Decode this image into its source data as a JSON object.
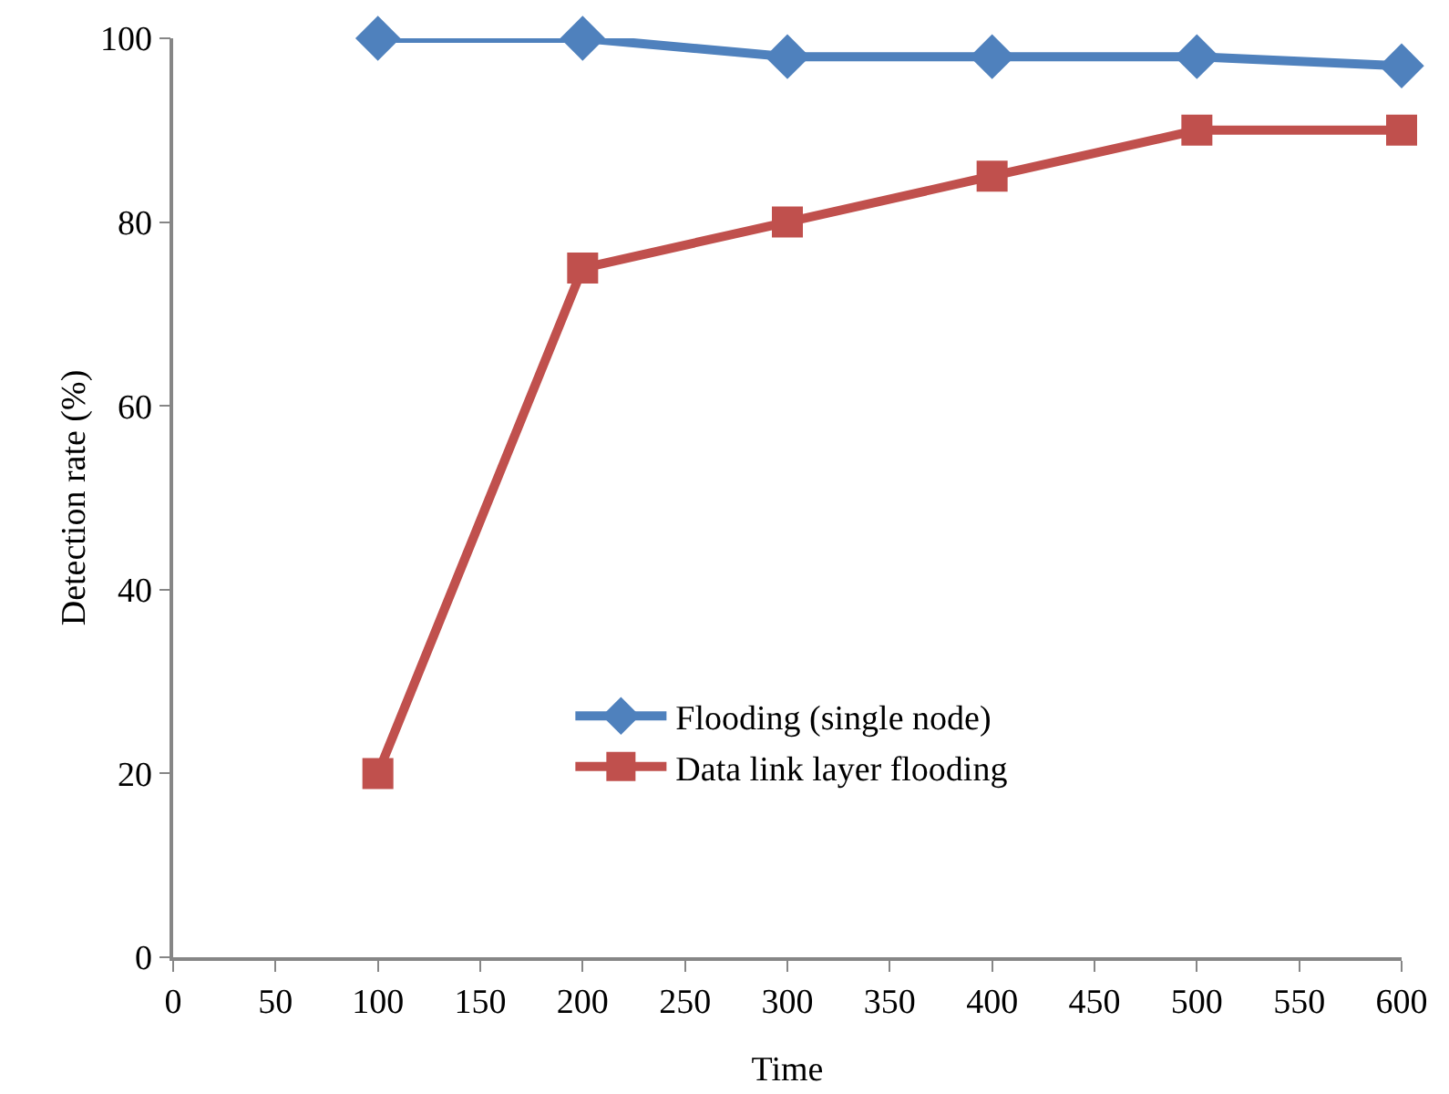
{
  "chart_data": {
    "type": "line",
    "xlabel": "Time",
    "ylabel": "Detection rate (%)",
    "x": [
      100,
      200,
      300,
      400,
      500,
      600
    ],
    "series": [
      {
        "name": "Flooding (single node)",
        "color": "#4f81bd",
        "values": [
          100,
          100,
          98,
          98,
          98,
          97
        ],
        "marker": "diamond"
      },
      {
        "name": "Data link layer flooding",
        "color": "#c0504d",
        "values": [
          20,
          75,
          80,
          85,
          90,
          90
        ],
        "marker": "square"
      }
    ],
    "xlim": [
      0,
      600
    ],
    "xticks": [
      0,
      50,
      100,
      150,
      200,
      250,
      300,
      350,
      400,
      450,
      500,
      550,
      600
    ],
    "ylim": [
      0,
      100
    ],
    "yticks": [
      0,
      20,
      40,
      60,
      80,
      100
    ],
    "grid": false,
    "legend": "bottom",
    "line_style": "solid"
  }
}
